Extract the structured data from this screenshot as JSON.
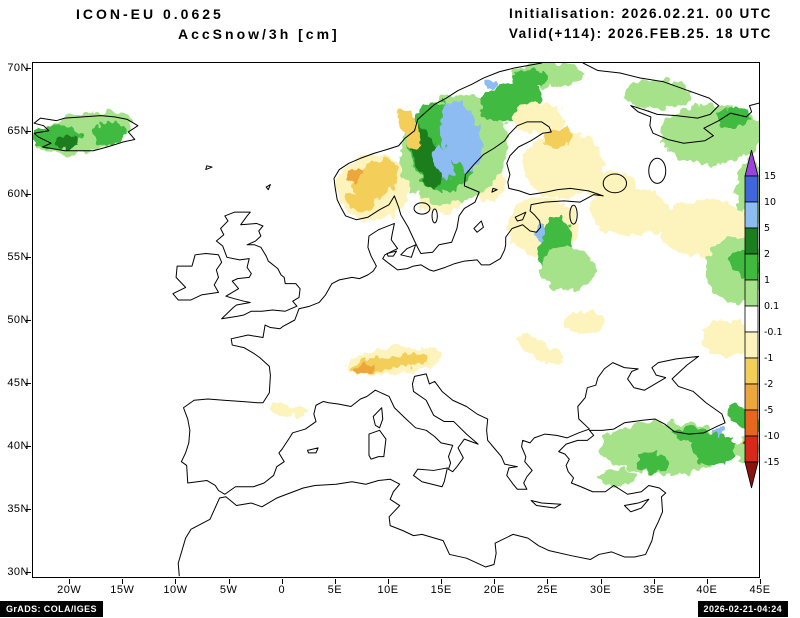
{
  "header": {
    "model": "ICON-EU 0.0625",
    "variable": "AccSnow/3h [cm]",
    "initialisation": "Initialisation: 2026.02.21. 00 UTC",
    "valid": "Valid(+114): 2026.FEB.25. 18 UTC"
  },
  "footer": {
    "credit": "GrADS: COLA/IGES",
    "generated": "2026-02-21-04:24"
  },
  "map": {
    "projection": "latlon",
    "domain": {
      "lon_min": -23.5,
      "lon_max": 45.0,
      "lat_min": 29.5,
      "lat_max": 70.5
    },
    "lat_ticks": [
      {
        "value": 70,
        "label": "70N"
      },
      {
        "value": 65,
        "label": "65N"
      },
      {
        "value": 60,
        "label": "60N"
      },
      {
        "value": 55,
        "label": "55N"
      },
      {
        "value": 50,
        "label": "50N"
      },
      {
        "value": 45,
        "label": "45N"
      },
      {
        "value": 40,
        "label": "40N"
      },
      {
        "value": 35,
        "label": "35N"
      },
      {
        "value": 30,
        "label": "30N"
      }
    ],
    "lon_ticks": [
      {
        "value": -20,
        "label": "20W"
      },
      {
        "value": -15,
        "label": "15W"
      },
      {
        "value": -10,
        "label": "10W"
      },
      {
        "value": -5,
        "label": "5W"
      },
      {
        "value": 0,
        "label": "0"
      },
      {
        "value": 5,
        "label": "5E"
      },
      {
        "value": 10,
        "label": "10E"
      },
      {
        "value": 15,
        "label": "15E"
      },
      {
        "value": 20,
        "label": "20E"
      },
      {
        "value": 25,
        "label": "25E"
      },
      {
        "value": 30,
        "label": "30E"
      },
      {
        "value": 35,
        "label": "35E"
      },
      {
        "value": 40,
        "label": "40E"
      },
      {
        "value": 45,
        "label": "45E"
      }
    ]
  },
  "colorbar": {
    "unit": "cm",
    "levels_top_to_bottom": [
      "15",
      "10",
      "5",
      "2",
      "1",
      "0.1",
      "-0.1",
      "-1",
      "-2",
      "-5",
      "-10",
      "-15"
    ],
    "segments_top_to_bottom": [
      {
        "color": "#9b43dd",
        "range": "> 15"
      },
      {
        "color": "#3f66dd",
        "range": "10 to 15"
      },
      {
        "color": "#8cbcf2",
        "range": "5 to 10"
      },
      {
        "color": "#1a7d1f",
        "range": "2 to 5"
      },
      {
        "color": "#3fba3f",
        "range": "1 to 2"
      },
      {
        "color": "#a6e28a",
        "range": "0.1 to 1"
      },
      {
        "color": "#ffffff",
        "range": "-0.1 to 0.1"
      },
      {
        "color": "#fdf3bd",
        "range": "-1 to -0.1"
      },
      {
        "color": "#f3cf5a",
        "range": "-2 to -1"
      },
      {
        "color": "#eda63b",
        "range": "-5 to -2"
      },
      {
        "color": "#e5671f",
        "range": "-10 to -5"
      },
      {
        "color": "#d8281b",
        "range": "-15 to -10"
      },
      {
        "color": "#8c120e",
        "range": "< -15"
      }
    ]
  },
  "snow_regions": [
    {
      "name": "iceland-fringe",
      "lon": -18.7,
      "lat": 64.9,
      "rx": 4.6,
      "ry": 1.5,
      "rot": -10,
      "color": "#a6e28a"
    },
    {
      "name": "iceland-green-west",
      "lon": -21.2,
      "lat": 64.6,
      "rx": 2.2,
      "ry": 1.0,
      "rot": 0,
      "color": "#3fba3f"
    },
    {
      "name": "iceland-green-east",
      "lon": -16.4,
      "lat": 64.9,
      "rx": 1.6,
      "ry": 0.9,
      "rot": 0,
      "color": "#3fba3f"
    },
    {
      "name": "iceland-dark-green",
      "lon": -20.2,
      "lat": 64.2,
      "rx": 1.2,
      "ry": 0.5,
      "rot": 0,
      "color": "#1a7d1f"
    },
    {
      "name": "south-norway-cream",
      "lon": 8.6,
      "lat": 60.6,
      "rx": 3.4,
      "ry": 2.7,
      "rot": 0,
      "color": "#fdf3bd"
    },
    {
      "name": "south-norway-gold",
      "lon": 8.8,
      "lat": 61.2,
      "rx": 2.3,
      "ry": 1.4,
      "rot": -25,
      "color": "#f3cf5a"
    },
    {
      "name": "south-norway-gold-south",
      "lon": 7.4,
      "lat": 59.5,
      "rx": 1.3,
      "ry": 0.9,
      "rot": 0,
      "color": "#f3cf5a"
    },
    {
      "name": "south-norway-amber-spot",
      "lon": 6.9,
      "lat": 61.6,
      "rx": 0.8,
      "ry": 0.45,
      "rot": -20,
      "color": "#eda63b"
    },
    {
      "name": "bothnia-cream",
      "lon": 19.5,
      "lat": 60.9,
      "rx": 1.6,
      "ry": 1.4,
      "rot": 0,
      "color": "#fdf3bd"
    },
    {
      "name": "sweden-cream-south",
      "lon": 15.0,
      "lat": 59.6,
      "rx": 2.1,
      "ry": 1.1,
      "rot": 0,
      "color": "#fdf3bd"
    },
    {
      "name": "scandes-lightgreen",
      "lon": 16.2,
      "l at": 0,
      "lat": 63.6,
      "rx": 5.2,
      "ry": 4.2,
      "rot": -20,
      "color": "#a6e28a"
    },
    {
      "name": "scandes-green",
      "lon": 15.1,
      "lat": 63.8,
      "rx": 3.1,
      "ry": 3.6,
      "rot": -22,
      "color": "#3fba3f"
    },
    {
      "name": "scandes-darkgreen",
      "lon": 13.7,
      "lat": 62.9,
      "rx": 1.2,
      "ry": 2.6,
      "rot": -25,
      "color": "#1a7d1f"
    },
    {
      "name": "scandes-blue",
      "lon": 16.9,
      "lat": 64.7,
      "rx": 1.8,
      "ry": 2.9,
      "rot": -22,
      "color": "#8cbcf2"
    },
    {
      "name": "scandes-blue-south",
      "lon": 15.2,
      "lat": 62.6,
      "rx": 0.8,
      "ry": 1.4,
      "rot": -25,
      "color": "#8cbcf2"
    },
    {
      "name": "norway-coast-gold",
      "lon": 12.0,
      "lat": 65.3,
      "rx": 0.7,
      "ry": 1.9,
      "rot": -28,
      "color": "#f3cf5a"
    },
    {
      "name": "lapland-green",
      "lon": 21.6,
      "lat": 67.4,
      "rx": 3.0,
      "ry": 1.5,
      "rot": -10,
      "color": "#3fba3f"
    },
    {
      "name": "finnmark-lightgreen",
      "lon": 25.0,
      "lat": 69.6,
      "rx": 3.4,
      "ry": 1.0,
      "rot": 0,
      "color": "#a6e28a"
    },
    {
      "name": "finnmark-green",
      "lon": 23.3,
      "lat": 69.3,
      "rx": 1.8,
      "ry": 0.7,
      "rot": 0,
      "color": "#3fba3f"
    },
    {
      "name": "tromso-blue",
      "lon": 19.6,
      "lat": 68.9,
      "rx": 0.7,
      "ry": 0.4,
      "rot": 0,
      "color": "#8cbcf2"
    },
    {
      "name": "finland-cream",
      "lon": 26.5,
      "lat": 62.4,
      "rx": 3.7,
      "ry": 2.7,
      "rot": 0,
      "color": "#fdf3bd"
    },
    {
      "name": "finland-gold",
      "lon": 26.0,
      "lat": 64.6,
      "rx": 1.3,
      "ry": 0.8,
      "rot": 0,
      "color": "#f3cf5a"
    },
    {
      "name": "finland-cream-north",
      "lon": 24.2,
      "lat": 66.1,
      "rx": 2.4,
      "ry": 1.2,
      "rot": 0,
      "color": "#fdf3bd"
    },
    {
      "name": "kola-lightgreen",
      "lon": 35.5,
      "lat": 68.0,
      "rx": 3.2,
      "ry": 1.2,
      "rot": 0,
      "color": "#a6e28a"
    },
    {
      "name": "nw-russia-lightgreen",
      "lon": 40.5,
      "lat": 64.8,
      "rx": 4.8,
      "ry": 2.4,
      "rot": 0,
      "color": "#a6e28a"
    },
    {
      "name": "nw-russia-green",
      "lon": 42.6,
      "lat": 66.2,
      "rx": 1.5,
      "ry": 0.8,
      "rot": 0,
      "color": "#3fba3f"
    },
    {
      "name": "east-edge-lightgreen",
      "lon": 44.2,
      "lat": 60.0,
      "rx": 1.4,
      "ry": 3.0,
      "rot": 0,
      "color": "#a6e28a"
    },
    {
      "name": "novgorod-cream",
      "lon": 32.8,
      "lat": 58.6,
      "rx": 3.8,
      "ry": 1.9,
      "rot": 0,
      "color": "#fdf3bd"
    },
    {
      "name": "volga-cream",
      "lon": 40.0,
      "lat": 57.3,
      "rx": 4.4,
      "ry": 2.3,
      "rot": 0,
      "color": "#fdf3bd"
    },
    {
      "name": "ladoga-cream",
      "lon": 31.0,
      "lat": 60.7,
      "rx": 2.4,
      "ry": 1.1,
      "rot": 0,
      "color": "#fdf3bd"
    },
    {
      "name": "baltics-cream",
      "lon": 24.6,
      "lat": 57.4,
      "rx": 3.4,
      "ry": 2.4,
      "rot": 0,
      "color": "#fdf3bd"
    },
    {
      "name": "baltics-green",
      "lon": 25.8,
      "lat": 55.8,
      "rx": 1.6,
      "ry": 2.5,
      "rot": 12,
      "color": "#3fba3f"
    },
    {
      "name": "baltics-blue-dot",
      "lon": 24.3,
      "lat": 56.9,
      "rx": 0.5,
      "ry": 0.6,
      "rot": 0,
      "color": "#8cbcf2"
    },
    {
      "name": "belarus-lightgreen",
      "lon": 27.0,
      "lat": 54.1,
      "rx": 2.6,
      "ry": 1.7,
      "rot": 0,
      "color": "#a6e28a"
    },
    {
      "name": "russia-east-lightgreen",
      "lon": 42.8,
      "lat": 54.0,
      "rx": 2.8,
      "ry": 2.6,
      "rot": 0,
      "color": "#a6e28a"
    },
    {
      "name": "russia-east-green",
      "lon": 43.6,
      "lat": 54.6,
      "rx": 1.4,
      "ry": 1.2,
      "rot": 0,
      "color": "#3fba3f"
    },
    {
      "name": "south-russia-cream",
      "lon": 42.0,
      "lat": 48.5,
      "rx": 2.4,
      "ry": 1.5,
      "rot": 0,
      "color": "#fdf3bd"
    },
    {
      "name": "ukraine-cream",
      "lon": 28.5,
      "lat": 49.8,
      "rx": 1.9,
      "ry": 0.9,
      "rot": 0,
      "color": "#fdf3bd"
    },
    {
      "name": "carpathians-cream",
      "lon": 24.3,
      "lat": 47.6,
      "rx": 2.4,
      "ry": 0.8,
      "rot": 25,
      "color": "#fdf3bd"
    },
    {
      "name": "alps-cream",
      "lon": 10.6,
      "lat": 46.7,
      "rx": 4.6,
      "ry": 1.1,
      "rot": -6,
      "color": "#fdf3bd"
    },
    {
      "name": "alps-gold",
      "lon": 8.9,
      "lat": 46.4,
      "rx": 2.5,
      "ry": 0.6,
      "rot": -10,
      "color": "#f3cf5a"
    },
    {
      "name": "alps-amber",
      "lon": 7.9,
      "lat": 46.1,
      "rx": 1.1,
      "ry": 0.35,
      "rot": -15,
      "color": "#eda63b"
    },
    {
      "name": "alps-gold-east",
      "lon": 12.4,
      "lat": 46.9,
      "rx": 1.4,
      "ry": 0.45,
      "rot": 0,
      "color": "#f3cf5a"
    },
    {
      "name": "pyrenees-cream",
      "lon": 0.6,
      "lat": 42.8,
      "rx": 1.8,
      "ry": 0.45,
      "rot": 5,
      "color": "#fdf3bd"
    },
    {
      "name": "anatolia-lightgreen",
      "lon": 36.0,
      "lat": 39.8,
      "rx": 6.0,
      "ry": 2.1,
      "rot": 0,
      "color": "#a6e28a"
    },
    {
      "name": "anatolia-green-east",
      "lon": 40.8,
      "lat": 39.7,
      "rx": 2.2,
      "ry": 1.2,
      "rot": 0,
      "color": "#3fba3f"
    },
    {
      "name": "anatolia-green-mid",
      "lon": 35.0,
      "lat": 38.6,
      "rx": 1.5,
      "ry": 0.8,
      "rot": 0,
      "color": "#3fba3f"
    },
    {
      "name": "taurus-lightgreen",
      "lon": 31.6,
      "lat": 37.4,
      "rx": 1.7,
      "ry": 0.7,
      "rot": 0,
      "color": "#a6e28a"
    },
    {
      "name": "pontic-green",
      "lon": 39.0,
      "lat": 40.8,
      "rx": 2.0,
      "ry": 0.6,
      "rot": 5,
      "color": "#3fba3f"
    },
    {
      "name": "caucasus-green",
      "lon": 43.6,
      "lat": 42.2,
      "rx": 1.8,
      "ry": 0.8,
      "rot": 25,
      "color": "#3fba3f"
    },
    {
      "name": "caucasus-blue-dot",
      "lon": 41.2,
      "lat": 41.1,
      "rx": 0.6,
      "ry": 0.35,
      "rot": 0,
      "color": "#8cbcf2"
    },
    {
      "name": "armenia-lightgreen",
      "lon": 43.9,
      "lat": 39.6,
      "rx": 1.3,
      "ry": 0.9,
      "rot": 0,
      "color": "#a6e28a"
    },
    {
      "name": "caucasus-red-dot",
      "lon": 43.9,
      "lat": 40.1,
      "rx": 0.3,
      "ry": 0.2,
      "rot": 0,
      "color": "#d8281b"
    }
  ]
}
